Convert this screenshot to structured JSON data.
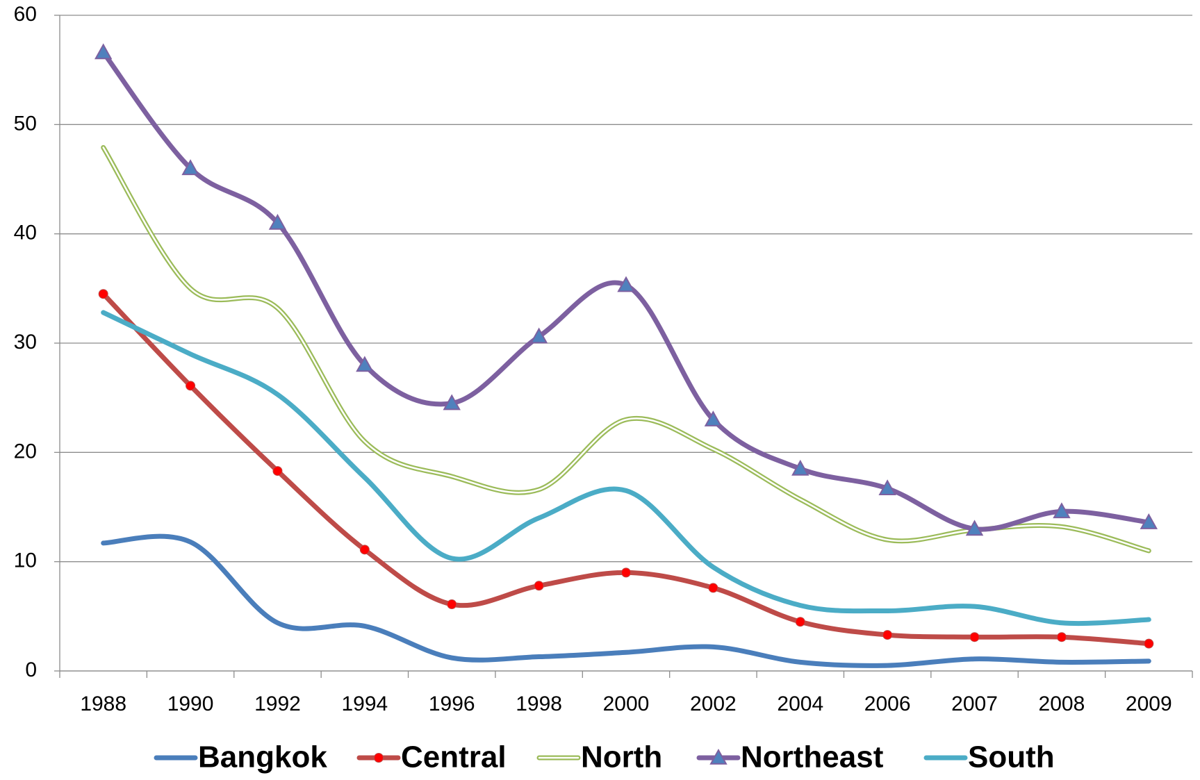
{
  "chart_data": {
    "type": "line",
    "categories": [
      "1988",
      "1990",
      "1992",
      "1994",
      "1996",
      "1998",
      "2000",
      "2002",
      "2004",
      "2006",
      "2007",
      "2008",
      "2009"
    ],
    "ylim": [
      0,
      60
    ],
    "yticks": [
      0,
      10,
      20,
      30,
      40,
      50,
      60
    ],
    "grid": true,
    "smooth": true,
    "legend": "bottom",
    "series": [
      {
        "name": "Bangkok",
        "color": "#4a7ebb",
        "marker": "none",
        "style": "single",
        "values": [
          11.7,
          11.8,
          4.4,
          4.1,
          1.2,
          1.3,
          1.7,
          2.2,
          0.8,
          0.5,
          1.1,
          0.8,
          0.9
        ]
      },
      {
        "name": "Central",
        "color": "#be4b48",
        "marker": "circle",
        "marker_color": "#ff0000",
        "style": "single",
        "values": [
          34.5,
          26.1,
          18.3,
          11.1,
          6.1,
          7.8,
          9.0,
          7.6,
          4.5,
          3.3,
          3.1,
          3.1,
          2.5
        ]
      },
      {
        "name": "North",
        "color": "#9bbb59",
        "marker": "none",
        "style": "double",
        "values": [
          47.9,
          35.0,
          33.2,
          21.0,
          17.8,
          16.6,
          23.0,
          20.3,
          15.7,
          12.0,
          12.9,
          13.2,
          11.0
        ]
      },
      {
        "name": "Northeast",
        "color": "#7d60a0",
        "marker": "triangle",
        "marker_color": "#4f81bd",
        "style": "single",
        "values": [
          56.6,
          46.0,
          41.0,
          28.0,
          24.5,
          30.6,
          35.3,
          23.0,
          18.5,
          16.7,
          13.0,
          14.6,
          13.6
        ]
      },
      {
        "name": "South",
        "color": "#4bacc6",
        "marker": "none",
        "style": "single",
        "values": [
          32.8,
          29.0,
          25.3,
          17.7,
          10.3,
          14.0,
          16.5,
          9.5,
          6.0,
          5.5,
          5.9,
          4.4,
          4.7
        ]
      }
    ]
  }
}
